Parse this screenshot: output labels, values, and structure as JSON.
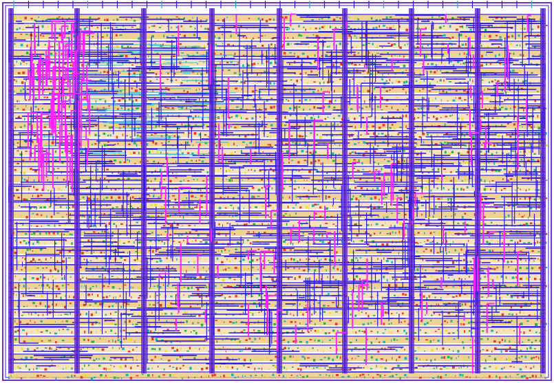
{
  "layout_view": {
    "colors": {
      "background": "#ffffff",
      "row_fill_a": "#f3d9a8",
      "row_fill_b": "#e8c27a",
      "cell_red": "#e83a1c",
      "cell_green": "#29b24a",
      "cell_yellow": "#e7e028",
      "metal_blue": "#2b16e8",
      "metal_dark": "#1a0cc8",
      "strap_purple": "#6b2fd1",
      "via_magenta": "#ff22ff",
      "cyan_region": "#33c9e0",
      "pin_teal": "#1bb3b3"
    },
    "icons": [
      "standard-cell-rows",
      "power-straps",
      "routing-metal",
      "via-stacks",
      "io-pins"
    ]
  }
}
